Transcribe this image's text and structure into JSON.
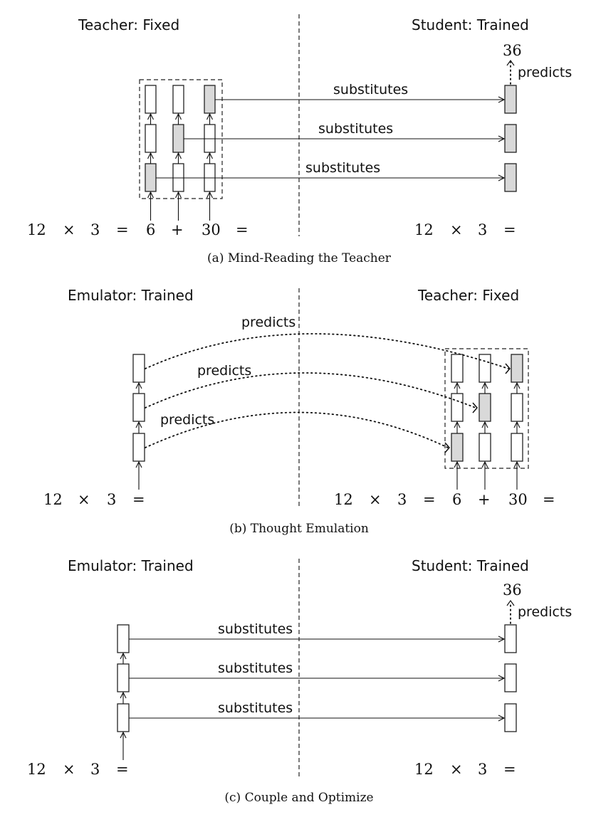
{
  "panel_a": {
    "left_title": "Teacher: Fixed",
    "right_title": "Student: Trained",
    "arrow_label": "substitutes",
    "predicts_label": "predicts",
    "output_value": "36",
    "left_equation": [
      "12",
      "×",
      "3",
      "=",
      "6",
      "+",
      "30",
      "="
    ],
    "right_equation": [
      "12",
      "×",
      "3",
      "="
    ],
    "caption": "(a) Mind-Reading the Teacher"
  },
  "panel_b": {
    "left_title": "Emulator: Trained",
    "right_title": "Teacher: Fixed",
    "arrow_label": "predicts",
    "left_equation": [
      "12",
      "×",
      "3",
      "="
    ],
    "right_equation": [
      "12",
      "×",
      "3",
      "=",
      "6",
      "+",
      "30",
      "="
    ],
    "caption": "(b) Thought Emulation"
  },
  "panel_c": {
    "left_title": "Emulator: Trained",
    "right_title": "Student: Trained",
    "arrow_label": "substitutes",
    "predicts_label": "predicts",
    "output_value": "36",
    "left_equation": [
      "12",
      "×",
      "3",
      "="
    ],
    "right_equation": [
      "12",
      "×",
      "3",
      "="
    ],
    "caption": "(c) Couple and Optimize"
  }
}
